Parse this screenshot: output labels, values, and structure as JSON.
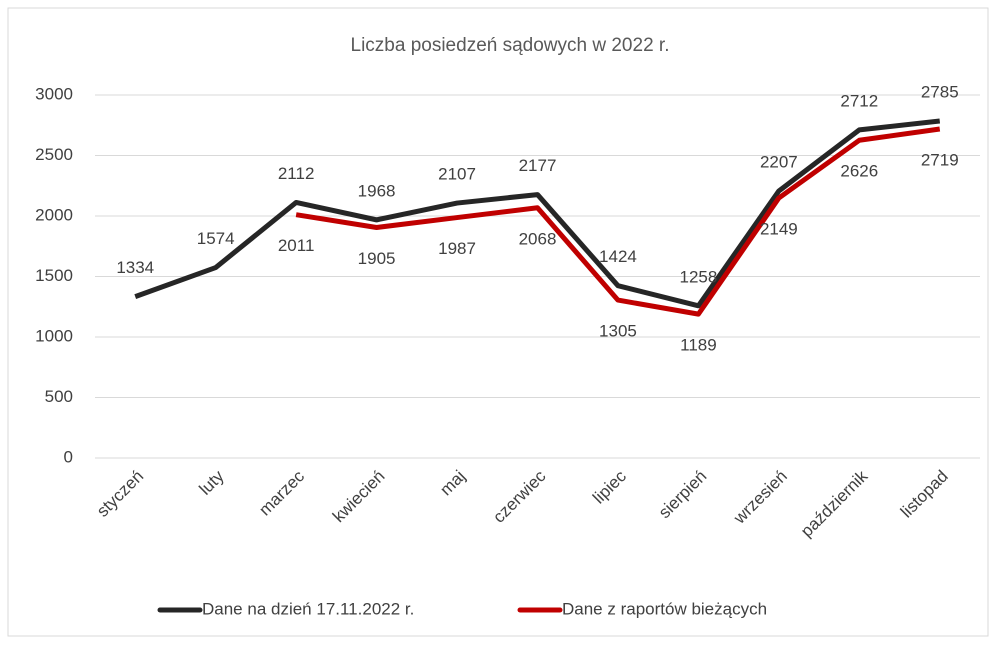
{
  "chart_data": {
    "type": "line",
    "title": "Liczba posiedzeń sądowych w 2022 r.",
    "categories": [
      "styczeń",
      "luty",
      "marzec",
      "kwiecień",
      "maj",
      "czerwiec",
      "lipiec",
      "sierpień",
      "wrzesień",
      "październik",
      "listopad"
    ],
    "series": [
      {
        "name": "Dane na dzień 17.11.2022 r.",
        "color": "#262626",
        "values": [
          1334,
          1574,
          2112,
          1968,
          2107,
          2177,
          1424,
          1258,
          2207,
          2712,
          2785
        ]
      },
      {
        "name": "Dane z raportów bieżących",
        "color": "#c00000",
        "values": [
          null,
          null,
          2011,
          1905,
          1987,
          2068,
          1305,
          1189,
          2149,
          2626,
          2719
        ]
      }
    ],
    "ylim": [
      0,
      3000
    ],
    "yticks": [
      0,
      500,
      1000,
      1500,
      2000,
      2500,
      3000
    ],
    "grid": true,
    "legend": "bottom"
  }
}
